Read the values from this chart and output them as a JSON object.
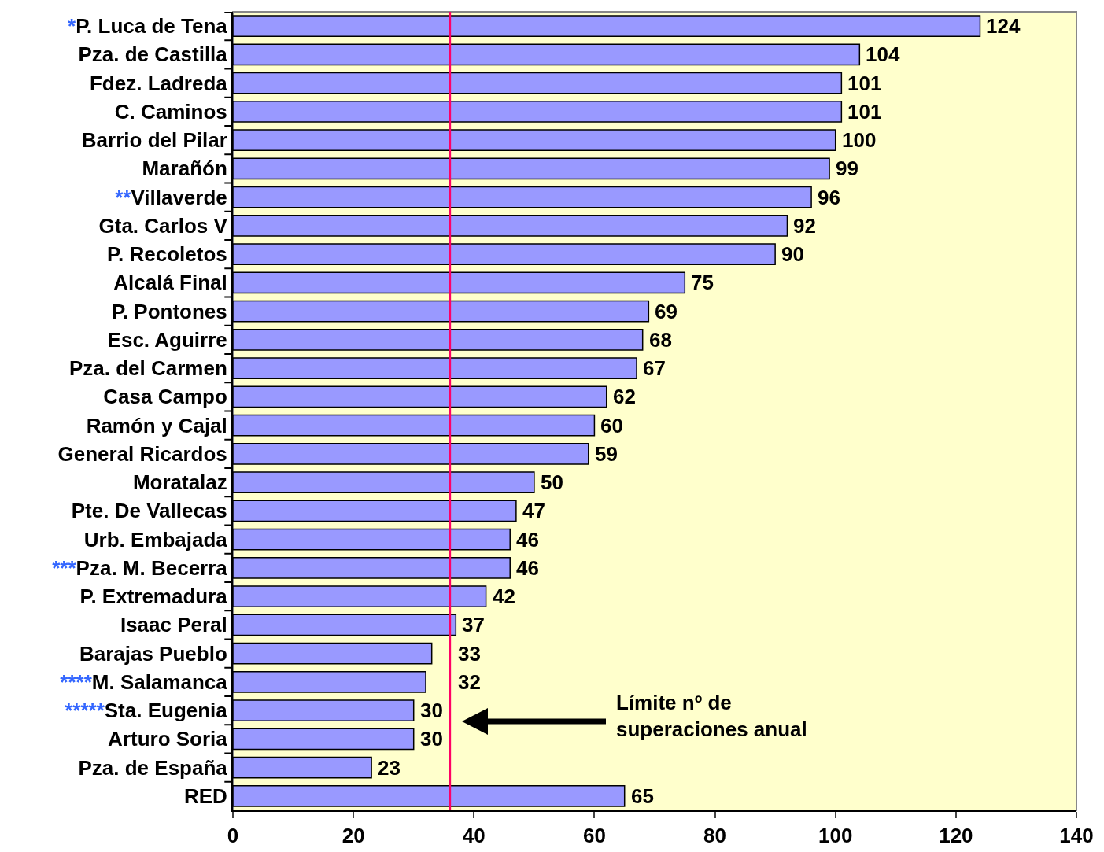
{
  "chart_data": {
    "type": "bar",
    "orientation": "horizontal",
    "categories": [
      "*P. Luca de Tena",
      "Pza. de Castilla",
      "Fdez. Ladreda",
      "C. Caminos",
      "Barrio del Pilar",
      "Marañón",
      "**Villaverde",
      "Gta. Carlos V",
      "P. Recoletos",
      "Alcalá Final",
      "P. Pontones",
      "Esc. Aguirre",
      "Pza. del Carmen",
      "Casa Campo",
      "Ramón y Cajal",
      "General Ricardos",
      "Moratalaz",
      "Pte. De Vallecas",
      "Urb. Embajada",
      "***Pza. M. Becerra",
      "P. Extremadura",
      "Isaac Peral",
      "Barajas Pueblo",
      "****M. Salamanca",
      "*****Sta. Eugenia",
      "Arturo Soria",
      "Pza. de España",
      "RED"
    ],
    "values": [
      124,
      104,
      101,
      101,
      100,
      99,
      96,
      92,
      90,
      75,
      69,
      68,
      67,
      62,
      60,
      59,
      50,
      47,
      46,
      46,
      42,
      37,
      33,
      32,
      30,
      30,
      23,
      65
    ],
    "color": "#9999ff",
    "data_labels": true,
    "grid": false,
    "legend": false,
    "xlim": [
      0,
      140
    ],
    "xticks": [
      0,
      20,
      40,
      60,
      80,
      100,
      120,
      140
    ],
    "ref_lines": [
      {
        "axis": "x",
        "value": 36,
        "color": "#ff0066"
      }
    ],
    "annotations": [
      "Límite nº de\nsuperaciones anual"
    ]
  }
}
